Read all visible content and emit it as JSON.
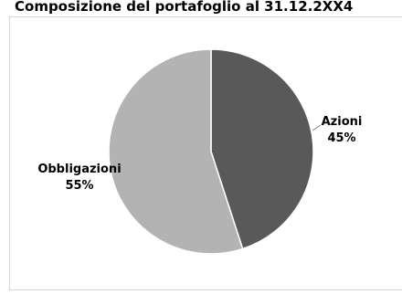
{
  "chart_data": {
    "type": "pie",
    "title": "Composizione del portafoglio al 31.12.2XX4",
    "categories": [
      "Azioni",
      "Obbligazioni"
    ],
    "values": [
      45,
      55
    ],
    "labels": [
      "45%",
      "55%"
    ],
    "colors": [
      "#595959",
      "#b3b3b3"
    ],
    "legend": "none"
  }
}
